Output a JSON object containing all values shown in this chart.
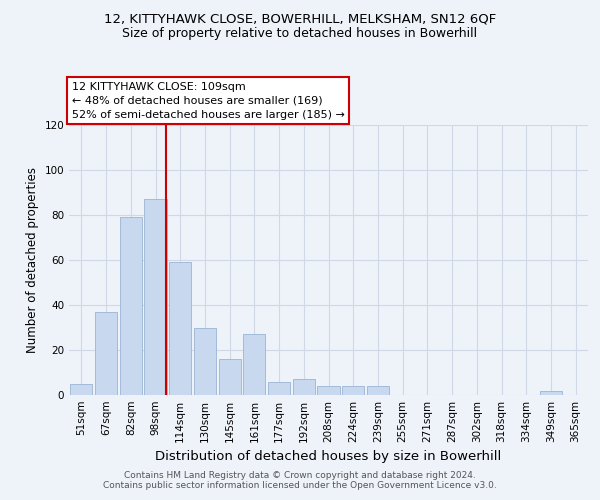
{
  "title1": "12, KITTYHAWK CLOSE, BOWERHILL, MELKSHAM, SN12 6QF",
  "title2": "Size of property relative to detached houses in Bowerhill",
  "xlabel": "Distribution of detached houses by size in Bowerhill",
  "ylabel": "Number of detached properties",
  "categories": [
    "51sqm",
    "67sqm",
    "82sqm",
    "98sqm",
    "114sqm",
    "130sqm",
    "145sqm",
    "161sqm",
    "177sqm",
    "192sqm",
    "208sqm",
    "224sqm",
    "239sqm",
    "255sqm",
    "271sqm",
    "287sqm",
    "302sqm",
    "318sqm",
    "334sqm",
    "349sqm",
    "365sqm"
  ],
  "values": [
    5,
    37,
    79,
    87,
    59,
    30,
    16,
    27,
    6,
    7,
    4,
    4,
    4,
    0,
    0,
    0,
    0,
    0,
    0,
    2,
    0
  ],
  "bar_color": "#c8d9ef",
  "bar_edge_color": "#9ab4d4",
  "vline_color": "#cc0000",
  "vline_pos": 3.42,
  "annotation_lines": [
    "12 KITTYHAWK CLOSE: 109sqm",
    "← 48% of detached houses are smaller (169)",
    "52% of semi-detached houses are larger (185) →"
  ],
  "annotation_box_color": "#ffffff",
  "annotation_box_edge": "#cc0000",
  "ylim": [
    0,
    120
  ],
  "yticks": [
    0,
    20,
    40,
    60,
    80,
    100,
    120
  ],
  "footer1": "Contains HM Land Registry data © Crown copyright and database right 2024.",
  "footer2": "Contains public sector information licensed under the Open Government Licence v3.0.",
  "bg_color": "#eef2f9",
  "plot_bg_color": "#eef2f9",
  "title1_fontsize": 9.5,
  "title2_fontsize": 9,
  "xlabel_fontsize": 9.5,
  "ylabel_fontsize": 8.5,
  "tick_fontsize": 7.5,
  "ann_fontsize": 8,
  "footer_fontsize": 6.5
}
